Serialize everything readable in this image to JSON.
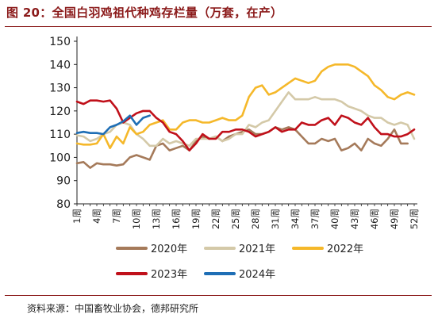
{
  "header": {
    "title": "图 20：全国白羽鸡祖代种鸡存栏量（万套，在产）"
  },
  "footer": {
    "source": "资料来源：中国畜牧业协会，德邦研究所"
  },
  "chart_data": {
    "type": "line",
    "title": "图 20：全国白羽鸡祖代种鸡存栏量（万套，在产）",
    "xlabel": "",
    "ylabel": "",
    "ylim": [
      80,
      150
    ],
    "yticks": [
      80,
      90,
      100,
      110,
      120,
      130,
      140,
      150
    ],
    "grid": false,
    "legend": "bottom",
    "x": [
      1,
      2,
      3,
      4,
      5,
      6,
      7,
      8,
      9,
      10,
      11,
      12,
      13,
      14,
      15,
      16,
      17,
      18,
      19,
      20,
      21,
      22,
      23,
      24,
      25,
      26,
      27,
      28,
      29,
      30,
      31,
      32,
      33,
      34,
      35,
      36,
      37,
      38,
      39,
      40,
      41,
      42,
      43,
      44,
      45,
      46,
      47,
      48,
      49,
      50,
      51,
      52
    ],
    "x_tick_labels": [
      "1周",
      "4周",
      "7周",
      "10周",
      "13周",
      "16周",
      "19周",
      "22周",
      "25周",
      "28周",
      "31周",
      "34周",
      "37周",
      "40周",
      "43周",
      "46周",
      "49周",
      "52周"
    ],
    "series": [
      {
        "name": "2020年",
        "color": "#A57A5A",
        "values": [
          97.5,
          98,
          95.5,
          97.5,
          97,
          97,
          96.5,
          97,
          100,
          101,
          100,
          99,
          105,
          106,
          103,
          104,
          105,
          103,
          107,
          109,
          108,
          109,
          107,
          109,
          110,
          111,
          112,
          110,
          110,
          111,
          113,
          112,
          113,
          112,
          109,
          106,
          106,
          108,
          107,
          108,
          103,
          104,
          106,
          103,
          108,
          106,
          105,
          108,
          112,
          106,
          106,
          null
        ]
      },
      {
        "name": "2021年",
        "color": "#D4C9A8",
        "values": [
          109.5,
          109,
          107,
          108,
          110,
          111,
          114,
          115,
          114,
          110,
          108,
          105,
          105,
          108,
          106,
          107,
          106,
          105,
          108,
          108,
          108,
          109,
          107,
          108,
          110,
          110,
          114,
          113,
          115,
          116,
          120,
          124,
          128,
          125,
          125,
          125,
          126,
          125,
          125,
          125,
          124,
          122,
          121,
          120,
          118,
          117,
          117,
          115,
          114,
          115,
          114,
          108
        ]
      },
      {
        "name": "2022年",
        "color": "#F5B82A",
        "values": [
          106,
          105.5,
          105.5,
          106,
          110,
          104,
          109,
          106,
          113,
          110,
          111,
          114,
          115,
          116,
          112,
          112,
          115,
          116,
          116,
          115,
          115,
          116,
          117,
          116,
          116,
          118,
          126,
          130,
          131,
          127,
          128,
          130,
          132,
          134,
          133,
          132,
          133,
          137,
          139,
          140,
          140,
          140,
          139,
          137,
          135,
          131,
          129,
          126,
          125,
          127,
          128,
          127
        ]
      },
      {
        "name": "2023年",
        "color": "#C0101A",
        "values": [
          124,
          123,
          124.5,
          124.5,
          124,
          124.5,
          121,
          115,
          117,
          119,
          120,
          120,
          117,
          115,
          111,
          110,
          107,
          103,
          106,
          110,
          108,
          108,
          111,
          111,
          112,
          112,
          111,
          109,
          110,
          111,
          113,
          111,
          112,
          112,
          115,
          114,
          114,
          116,
          117,
          114,
          118,
          117,
          115,
          114,
          117,
          113,
          110,
          110,
          109,
          109,
          110,
          112
        ]
      },
      {
        "name": "2024年",
        "color": "#1E6EB5",
        "values": [
          110.5,
          111,
          110.5,
          110.5,
          110,
          113,
          114,
          115.5,
          118,
          114,
          117,
          118,
          null,
          null,
          null,
          null,
          null,
          null,
          null,
          null,
          null,
          null,
          null,
          null,
          null,
          null,
          null,
          null,
          null,
          null,
          null,
          null,
          null,
          null,
          null,
          null,
          null,
          null,
          null,
          null,
          null,
          null,
          null,
          null,
          null,
          null,
          null,
          null,
          null,
          null,
          null,
          null
        ]
      }
    ]
  }
}
